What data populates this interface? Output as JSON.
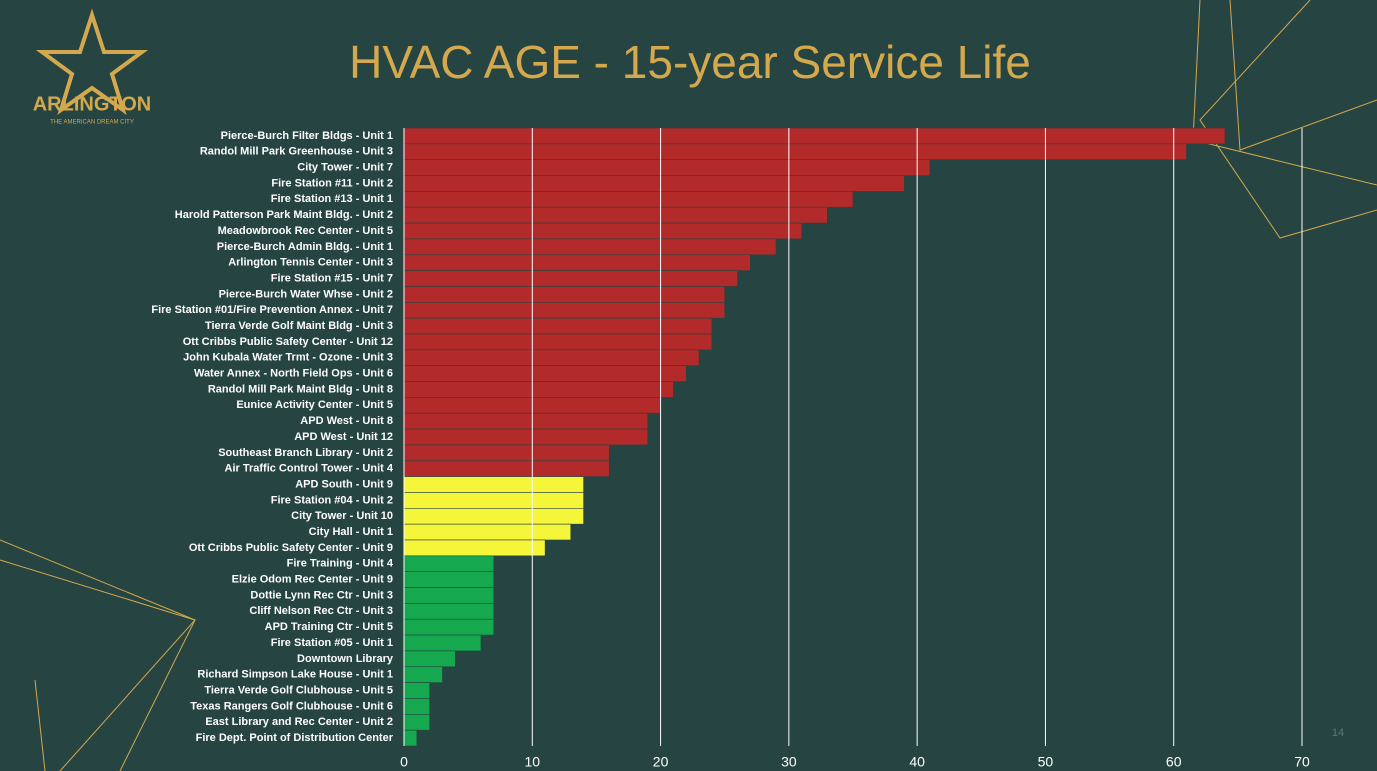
{
  "chart_data": {
    "type": "bar",
    "orientation": "horizontal",
    "title": "HVAC AGE - 15-year Service Life",
    "logo": "ARLINGTON",
    "logo_tagline": "THE AMERICAN DREAM CITY",
    "page_number": "14",
    "categories": [
      "Pierce-Burch Filter Bldgs - Unit 1",
      "Randol Mill Park Greenhouse - Unit 3",
      "City Tower - Unit 7",
      "Fire Station #11 - Unit 2",
      "Fire Station #13 - Unit 1",
      "Harold Patterson Park Maint Bldg. - Unit 2",
      "Meadowbrook Rec Center - Unit 5",
      "Pierce-Burch Admin Bldg. - Unit 1",
      "Arlington Tennis Center - Unit 3",
      "Fire Station #15 - Unit 7",
      "Pierce-Burch Water Whse - Unit 2",
      "Fire Station #01/Fire Prevention Annex - Unit 7",
      "Tierra Verde Golf Maint Bldg - Unit 3",
      "Ott Cribbs Public Safety Center - Unit 12",
      "John Kubala Water Trmt - Ozone - Unit 3",
      "Water Annex - North Field Ops - Unit 6",
      "Randol Mill Park Maint Bldg - Unit 8",
      "Eunice Activity Center - Unit 5",
      "APD West - Unit 8",
      "APD West - Unit 12",
      "Southeast Branch Library - Unit 2",
      "Air Traffic Control Tower - Unit 4",
      "APD South - Unit 9",
      "Fire Station #04 - Unit 2",
      "City Tower - Unit 10",
      "City Hall - Unit 1",
      "Ott Cribbs Public Safety Center - Unit 9",
      "Fire Training - Unit 4",
      "Elzie Odom Rec Center - Unit 9",
      "Dottie Lynn Rec Ctr - Unit 3",
      "Cliff Nelson Rec Ctr - Unit 3",
      "APD Training Ctr - Unit 5",
      "Fire Station #05 - Unit 1",
      "Downtown Library",
      "Richard Simpson Lake House - Unit 1",
      "Tierra Verde Golf Clubhouse - Unit 5",
      "Texas Rangers Golf Clubhouse - Unit 6",
      "East Library and Rec Center - Unit 2",
      "Fire Dept. Point of Distribution Center"
    ],
    "values": [
      64,
      61,
      41,
      39,
      35,
      33,
      31,
      29,
      27,
      26,
      25,
      25,
      24,
      24,
      23,
      22,
      21,
      20,
      19,
      19,
      16,
      16,
      14,
      14,
      14,
      13,
      11,
      7,
      7,
      7,
      7,
      7,
      6,
      4,
      3,
      2,
      2,
      2,
      1
    ],
    "colors": [
      "#b22a2a",
      "#b22a2a",
      "#b22a2a",
      "#b22a2a",
      "#b22a2a",
      "#b22a2a",
      "#b22a2a",
      "#b22a2a",
      "#b22a2a",
      "#b22a2a",
      "#b22a2a",
      "#b22a2a",
      "#b22a2a",
      "#b22a2a",
      "#b22a2a",
      "#b22a2a",
      "#b22a2a",
      "#b22a2a",
      "#b22a2a",
      "#b22a2a",
      "#b22a2a",
      "#b22a2a",
      "#f5f53a",
      "#f5f53a",
      "#f5f53a",
      "#f5f53a",
      "#f5f53a",
      "#16a84f",
      "#16a84f",
      "#16a84f",
      "#16a84f",
      "#16a84f",
      "#16a84f",
      "#16a84f",
      "#16a84f",
      "#16a84f",
      "#16a84f",
      "#16a84f",
      "#16a84f"
    ],
    "xlim": [
      0,
      70
    ],
    "xticks": [
      0,
      10,
      20,
      30,
      40,
      50,
      60,
      70
    ],
    "grid": true
  }
}
